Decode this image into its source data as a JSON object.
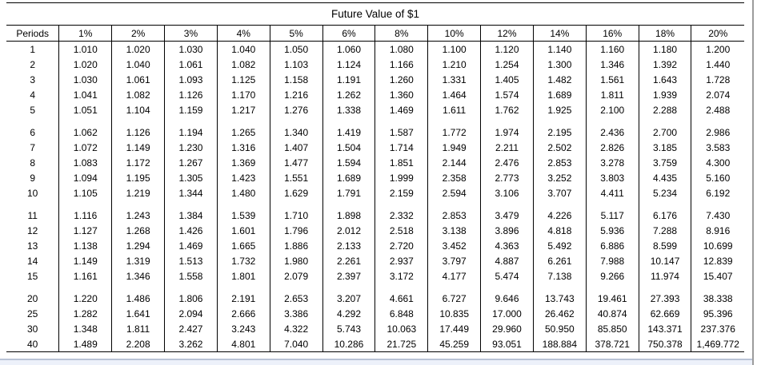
{
  "table": {
    "title": "Future Value of $1",
    "columns": [
      "Periods",
      "1%",
      "2%",
      "3%",
      "4%",
      "5%",
      "6%",
      "8%",
      "10%",
      "12%",
      "14%",
      "16%",
      "18%",
      "20%"
    ],
    "groups": [
      {
        "rows": [
          {
            "period": "1",
            "values": [
              "1.010",
              "1.020",
              "1.030",
              "1.040",
              "1.050",
              "1.060",
              "1.080",
              "1.100",
              "1.120",
              "1.140",
              "1.160",
              "1.180",
              "1.200"
            ]
          },
          {
            "period": "2",
            "values": [
              "1.020",
              "1.040",
              "1.061",
              "1.082",
              "1.103",
              "1.124",
              "1.166",
              "1.210",
              "1.254",
              "1.300",
              "1.346",
              "1.392",
              "1.440"
            ]
          },
          {
            "period": "3",
            "values": [
              "1.030",
              "1.061",
              "1.093",
              "1.125",
              "1.158",
              "1.191",
              "1.260",
              "1.331",
              "1.405",
              "1.482",
              "1.561",
              "1.643",
              "1.728"
            ]
          },
          {
            "period": "4",
            "values": [
              "1.041",
              "1.082",
              "1.126",
              "1.170",
              "1.216",
              "1.262",
              "1.360",
              "1.464",
              "1.574",
              "1.689",
              "1.811",
              "1.939",
              "2.074"
            ]
          },
          {
            "period": "5",
            "values": [
              "1.051",
              "1.104",
              "1.159",
              "1.217",
              "1.276",
              "1.338",
              "1.469",
              "1.611",
              "1.762",
              "1.925",
              "2.100",
              "2.288",
              "2.488"
            ]
          }
        ]
      },
      {
        "rows": [
          {
            "period": "6",
            "values": [
              "1.062",
              "1.126",
              "1.194",
              "1.265",
              "1.340",
              "1.419",
              "1.587",
              "1.772",
              "1.974",
              "2.195",
              "2.436",
              "2.700",
              "2.986"
            ]
          },
          {
            "period": "7",
            "values": [
              "1.072",
              "1.149",
              "1.230",
              "1.316",
              "1.407",
              "1.504",
              "1.714",
              "1.949",
              "2.211",
              "2.502",
              "2.826",
              "3.185",
              "3.583"
            ]
          },
          {
            "period": "8",
            "values": [
              "1.083",
              "1.172",
              "1.267",
              "1.369",
              "1.477",
              "1.594",
              "1.851",
              "2.144",
              "2.476",
              "2.853",
              "3.278",
              "3.759",
              "4.300"
            ]
          },
          {
            "period": "9",
            "values": [
              "1.094",
              "1.195",
              "1.305",
              "1.423",
              "1.551",
              "1.689",
              "1.999",
              "2.358",
              "2.773",
              "3.252",
              "3.803",
              "4.435",
              "5.160"
            ]
          },
          {
            "period": "10",
            "values": [
              "1.105",
              "1.219",
              "1.344",
              "1.480",
              "1.629",
              "1.791",
              "2.159",
              "2.594",
              "3.106",
              "3.707",
              "4.411",
              "5.234",
              "6.192"
            ]
          }
        ]
      },
      {
        "rows": [
          {
            "period": "11",
            "values": [
              "1.116",
              "1.243",
              "1.384",
              "1.539",
              "1.710",
              "1.898",
              "2.332",
              "2.853",
              "3.479",
              "4.226",
              "5.117",
              "6.176",
              "7.430"
            ]
          },
          {
            "period": "12",
            "values": [
              "1.127",
              "1.268",
              "1.426",
              "1.601",
              "1.796",
              "2.012",
              "2.518",
              "3.138",
              "3.896",
              "4.818",
              "5.936",
              "7.288",
              "8.916"
            ]
          },
          {
            "period": "13",
            "values": [
              "1.138",
              "1.294",
              "1.469",
              "1.665",
              "1.886",
              "2.133",
              "2.720",
              "3.452",
              "4.363",
              "5.492",
              "6.886",
              "8.599",
              "10.699"
            ]
          },
          {
            "period": "14",
            "values": [
              "1.149",
              "1.319",
              "1.513",
              "1.732",
              "1.980",
              "2.261",
              "2.937",
              "3.797",
              "4.887",
              "6.261",
              "7.988",
              "10.147",
              "12.839"
            ]
          },
          {
            "period": "15",
            "values": [
              "1.161",
              "1.346",
              "1.558",
              "1.801",
              "2.079",
              "2.397",
              "3.172",
              "4.177",
              "5.474",
              "7.138",
              "9.266",
              "11.974",
              "15.407"
            ]
          }
        ]
      },
      {
        "rows": [
          {
            "period": "20",
            "values": [
              "1.220",
              "1.486",
              "1.806",
              "2.191",
              "2.653",
              "3.207",
              "4.661",
              "6.727",
              "9.646",
              "13.743",
              "19.461",
              "27.393",
              "38.338"
            ]
          },
          {
            "period": "25",
            "values": [
              "1.282",
              "1.641",
              "2.094",
              "2.666",
              "3.386",
              "4.292",
              "6.848",
              "10.835",
              "17.000",
              "26.462",
              "40.874",
              "62.669",
              "95.396"
            ]
          },
          {
            "period": "30",
            "values": [
              "1.348",
              "1.811",
              "2.427",
              "3.243",
              "4.322",
              "5.743",
              "10.063",
              "17.449",
              "29.960",
              "50.950",
              "85.850",
              "143.371",
              "237.376"
            ]
          },
          {
            "period": "40",
            "values": [
              "1.489",
              "2.208",
              "3.262",
              "4.801",
              "7.040",
              "10.286",
              "21.725",
              "45.259",
              "93.051",
              "188.884",
              "378.721",
              "750.378",
              "1,469.772"
            ]
          }
        ]
      }
    ]
  },
  "colors": {
    "table_rule": "#000000",
    "bottom_strip_fill": "#edf1fa",
    "bottom_strip_edge": "#b9c3d6",
    "window_edge_line": "#9c9c9c"
  }
}
